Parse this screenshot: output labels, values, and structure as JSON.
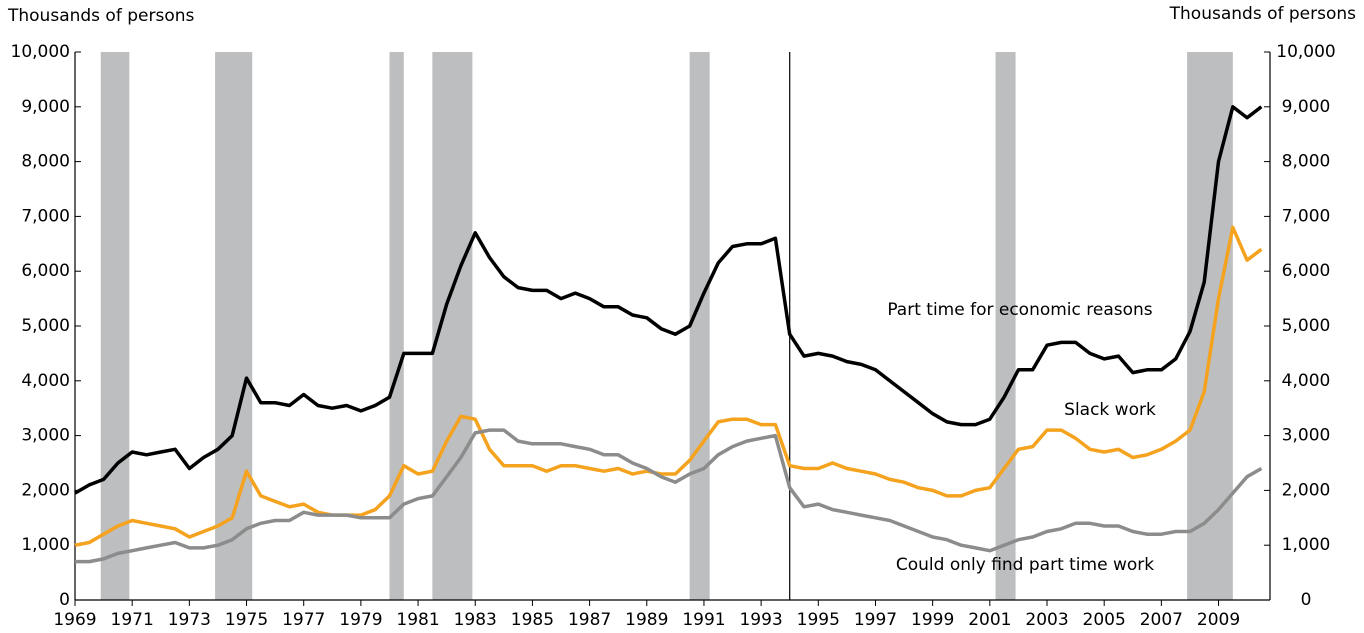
{
  "chart_data": {
    "type": "line",
    "ylabel": "Thousands of persons",
    "y2label": "Thousands of persons",
    "x": [
      1969,
      1969.5,
      1970,
      1970.5,
      1971,
      1971.5,
      1972,
      1972.5,
      1973,
      1973.5,
      1974,
      1974.5,
      1975,
      1975.5,
      1976,
      1976.5,
      1977,
      1977.5,
      1978,
      1978.5,
      1979,
      1979.5,
      1980,
      1980.5,
      1981,
      1981.5,
      1982,
      1982.5,
      1983,
      1983.5,
      1984,
      1984.5,
      1985,
      1985.5,
      1986,
      1986.5,
      1987,
      1987.5,
      1988,
      1988.5,
      1989,
      1989.5,
      1990,
      1990.5,
      1991,
      1991.5,
      1992,
      1992.5,
      1993,
      1993.5,
      1994,
      1994.5,
      1995,
      1995.5,
      1996,
      1996.5,
      1997,
      1997.5,
      1998,
      1998.5,
      1999,
      1999.5,
      2000,
      2000.5,
      2001,
      2001.5,
      2002,
      2002.5,
      2003,
      2003.5,
      2004,
      2004.5,
      2005,
      2005.5,
      2006,
      2006.5,
      2007,
      2007.5,
      2008,
      2008.5,
      2009,
      2009.5,
      2010,
      2010.5
    ],
    "series": [
      {
        "name": "Part time for economic reasons",
        "color": "#000000",
        "values": [
          1950,
          2100,
          2200,
          2500,
          2700,
          2650,
          2700,
          2750,
          2400,
          2600,
          2750,
          3000,
          4050,
          3600,
          3600,
          3550,
          3750,
          3550,
          3500,
          3550,
          3450,
          3550,
          3700,
          4500,
          4500,
          4500,
          5400,
          6100,
          6700,
          6250,
          5900,
          5700,
          5650,
          5650,
          5500,
          5600,
          5500,
          5350,
          5350,
          5200,
          5150,
          4950,
          4850,
          5000,
          5600,
          6150,
          6450,
          6500,
          6500,
          6600,
          4850,
          4450,
          4500,
          4450,
          4350,
          4300,
          4200,
          4000,
          3800,
          3600,
          3400,
          3250,
          3200,
          3200,
          3300,
          3700,
          4200,
          4200,
          4650,
          4700,
          4700,
          4500,
          4400,
          4450,
          4150,
          4200,
          4200,
          4400,
          4900,
          5800,
          8000,
          9000,
          8800,
          9000
        ]
      },
      {
        "name": "Slack work",
        "color": "#f5a21e",
        "values": [
          1000,
          1050,
          1200,
          1350,
          1450,
          1400,
          1350,
          1300,
          1150,
          1250,
          1350,
          1500,
          2350,
          1900,
          1800,
          1700,
          1750,
          1600,
          1550,
          1550,
          1550,
          1650,
          1900,
          2450,
          2300,
          2350,
          2900,
          3350,
          3300,
          2750,
          2450,
          2450,
          2450,
          2350,
          2450,
          2450,
          2400,
          2350,
          2400,
          2300,
          2350,
          2300,
          2300,
          2550,
          2900,
          3250,
          3300,
          3300,
          3200,
          3200,
          2450,
          2400,
          2400,
          2500,
          2400,
          2350,
          2300,
          2200,
          2150,
          2050,
          2000,
          1900,
          1900,
          2000,
          2050,
          2400,
          2750,
          2800,
          3100,
          3100,
          2950,
          2750,
          2700,
          2750,
          2600,
          2650,
          2750,
          2900,
          3100,
          3800,
          5500,
          6800,
          6200,
          6400
        ]
      },
      {
        "name": "Could only find part time work",
        "color": "#8c8c8c",
        "values": [
          700,
          700,
          750,
          850,
          900,
          950,
          1000,
          1050,
          950,
          950,
          1000,
          1100,
          1300,
          1400,
          1450,
          1450,
          1600,
          1550,
          1550,
          1550,
          1500,
          1500,
          1500,
          1750,
          1850,
          1900,
          2250,
          2600,
          3050,
          3100,
          3100,
          2900,
          2850,
          2850,
          2850,
          2800,
          2750,
          2650,
          2650,
          2500,
          2400,
          2250,
          2150,
          2300,
          2400,
          2650,
          2800,
          2900,
          2950,
          3000,
          2050,
          1700,
          1750,
          1650,
          1600,
          1550,
          1500,
          1450,
          1350,
          1250,
          1150,
          1100,
          1000,
          950,
          900,
          1000,
          1100,
          1150,
          1250,
          1300,
          1400,
          1400,
          1350,
          1350,
          1250,
          1200,
          1200,
          1250,
          1250,
          1400,
          1650,
          1950,
          2250,
          2400
        ]
      }
    ],
    "recessions": [
      [
        1969.9,
        1970.9
      ],
      [
        1973.9,
        1975.2
      ],
      [
        1980.0,
        1980.5
      ],
      [
        1981.5,
        1982.9
      ],
      [
        1990.5,
        1991.2
      ],
      [
        2001.2,
        2001.9
      ],
      [
        2007.9,
        2009.5
      ]
    ],
    "recession_color": "#bcbec0",
    "break_x": 1994,
    "xlim": [
      1969,
      2010.8
    ],
    "xticks": [
      1969,
      1971,
      1973,
      1975,
      1977,
      1979,
      1981,
      1983,
      1985,
      1987,
      1989,
      1991,
      1993,
      1995,
      1997,
      1999,
      2001,
      2003,
      2005,
      2007,
      2009
    ],
    "ylim": [
      0,
      10000
    ],
    "yticks": [
      0,
      {
        "value": 1000,
        "label": "1,000"
      },
      {
        "value": 2000,
        "label": "2,000"
      },
      {
        "value": 3000,
        "label": "3,000"
      },
      {
        "value": 4000,
        "label": "4,000"
      },
      {
        "value": 5000,
        "label": "5,000"
      },
      {
        "value": 6000,
        "label": "6,000"
      },
      {
        "value": 7000,
        "label": "7,000"
      },
      {
        "value": 8000,
        "label": "8,000"
      },
      {
        "value": 9000,
        "label": "9,000"
      },
      {
        "value": 10000,
        "label": "10,000"
      }
    ],
    "y2lim": [
      0,
      10000
    ],
    "y2ticks": [
      0,
      {
        "value": 1000,
        "label": "1,000"
      },
      {
        "value": 2000,
        "label": "2,000"
      },
      {
        "value": 3000,
        "label": "3,000"
      },
      {
        "value": 4000,
        "label": "4,000"
      },
      {
        "value": 5000,
        "label": "5,000"
      },
      {
        "value": 6000,
        "label": "6,000"
      },
      {
        "value": 7000,
        "label": "7,000"
      },
      {
        "value": 8000,
        "label": "8,000"
      },
      {
        "value": 9000,
        "label": "9,000"
      },
      {
        "value": 10000,
        "label": "10,000"
      }
    ]
  }
}
